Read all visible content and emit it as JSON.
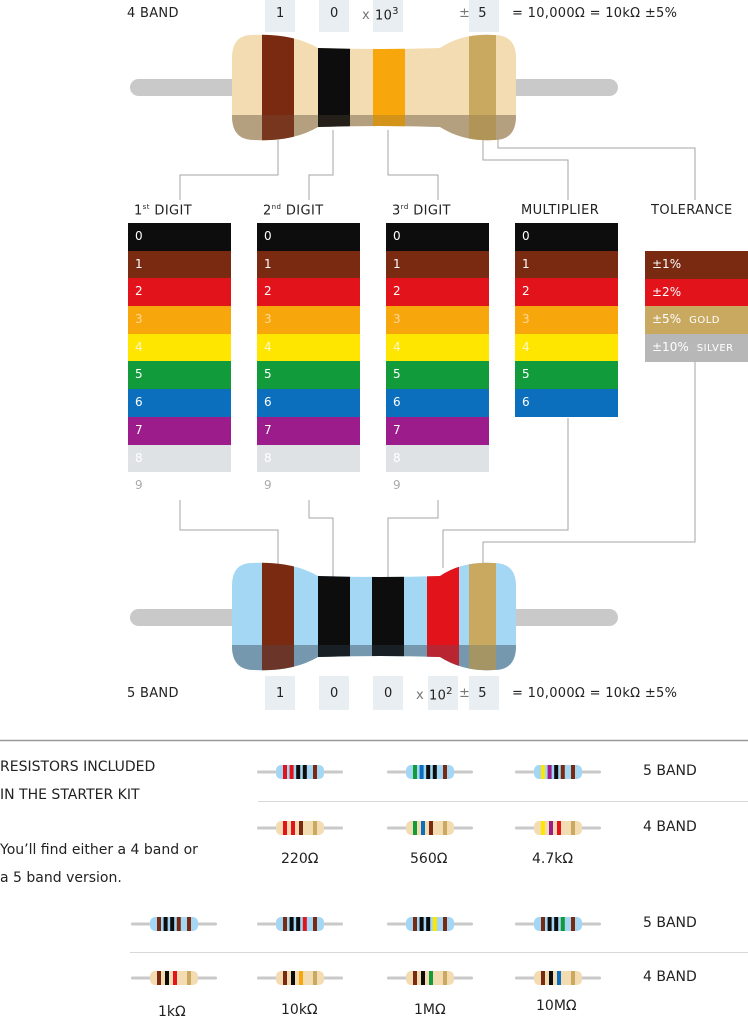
{
  "top": {
    "band_label": "4 BAND",
    "digits": [
      "1",
      "0"
    ],
    "mult_x": "x",
    "mult_base": "10",
    "mult_exp": "3",
    "tol_pm": "±",
    "tol_val": "5",
    "equation": "= 10,000Ω = 10kΩ ±5%"
  },
  "bottom": {
    "band_label": "5 BAND",
    "digits": [
      "1",
      "0",
      "0"
    ],
    "mult_x": "x",
    "mult_base": "10",
    "mult_exp": "2",
    "tol_pm": "±",
    "tol_val": "5",
    "equation": "= 10,000Ω = 10kΩ ±5%"
  },
  "table": {
    "headers": {
      "d1": {
        "main": "1",
        "sup": "st",
        "rest": " DIGIT"
      },
      "d2": {
        "main": "2",
        "sup": "nd",
        "rest": " DIGIT"
      },
      "d3": {
        "main": "3",
        "sup": "rd",
        "rest": " DIGIT"
      },
      "mult": "MULTIPLIER",
      "tol": "TOLERANCE"
    },
    "digit_values": [
      "0",
      "1",
      "2",
      "3",
      "4",
      "5",
      "6",
      "7",
      "8",
      "9"
    ],
    "multiplier_values": [
      "0",
      "1",
      "2",
      "3",
      "4",
      "5",
      "6"
    ],
    "tolerance": [
      {
        "label": "±1%",
        "sub": ""
      },
      {
        "label": "±2%",
        "sub": ""
      },
      {
        "label": "±5%",
        "sub": "GOLD"
      },
      {
        "label": "±10%",
        "sub": "SILVER"
      }
    ]
  },
  "colors": {
    "black": "#0d0d0d",
    "brown": "#7b2a12",
    "red": "#e3131b",
    "orange": "#f7a60c",
    "yellow": "#ffe600",
    "green": "#119b3b",
    "blue": "#0c6fbe",
    "violet": "#9c1c8b",
    "grey": "#dfe2e5",
    "white": "#ffffff",
    "gold": "#c9a960",
    "silver": "#b7b7b7",
    "top_body": "#f3dcb2",
    "bottom_body": "#a4d7f3",
    "lead": "#c9c9c9",
    "strip": "#e9eef2"
  },
  "kit": {
    "title_line1": "RESISTORS INCLUDED",
    "title_line2": "IN THE STARTER KIT",
    "desc_line1": "You’ll find either a 4 band or",
    "desc_line2": "a 5 band version.",
    "row_labels": [
      "5 BAND",
      "4 BAND",
      "5 BAND",
      "4 BAND"
    ],
    "values_top": [
      "220Ω",
      "560Ω",
      "4.7kΩ"
    ],
    "values_bottom": [
      "1kΩ",
      "10kΩ",
      "1MΩ",
      "10MΩ"
    ]
  }
}
